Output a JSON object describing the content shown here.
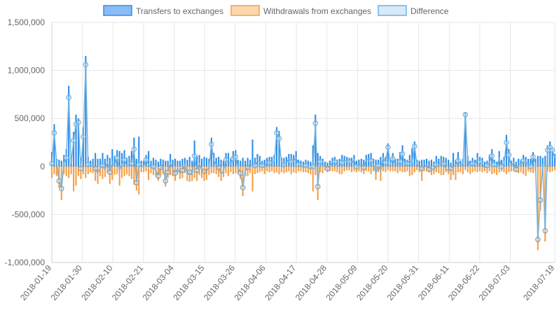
{
  "chart_data": {
    "type": "bar",
    "title": "",
    "xlabel": "",
    "ylabel": "",
    "ylim": [
      -1000000,
      1500000
    ],
    "y_ticks": [
      "1,500,000",
      "1,000,000",
      "500,000",
      "0",
      "-500,000",
      "-1,000,000"
    ],
    "y_tick_values": [
      1500000,
      1000000,
      500000,
      0,
      -500000,
      -1000000
    ],
    "x_start": "2018-01-19",
    "x_end": "2018-07-19",
    "x_ticks": [
      "2018-01-19",
      "2018-01-30",
      "2018-02-10",
      "2018-02-21",
      "2018-03-04",
      "2018-03-15",
      "2018-03-26",
      "2018-04-06",
      "2018-04-17",
      "2018-04-28",
      "2018-05-09",
      "2018-05-20",
      "2018-05-31",
      "2018-06-11",
      "2018-06-22",
      "2018-07-03",
      "2018-07-19"
    ],
    "grid": true,
    "legend_position": "top",
    "legend": [
      {
        "label": "Transfers to exchanges",
        "fill": "#8bbcf5",
        "stroke": "#2f8ee8"
      },
      {
        "label": "Withdrawals from exchanges",
        "fill": "#fcd6ad",
        "stroke": "#f4a04a"
      },
      {
        "label": "Difference",
        "fill": "#d6eaf8",
        "stroke": "#6fb2e0"
      }
    ],
    "series": [
      {
        "name": "Transfers to exchanges",
        "type": "bar",
        "color": "#2f8ee8",
        "values": [
          150000,
          440000,
          80000,
          70000,
          60000,
          120000,
          180000,
          840000,
          120000,
          360000,
          540000,
          500000,
          90000,
          410000,
          1150000,
          100000,
          60000,
          80000,
          140000,
          80000,
          80000,
          140000,
          80000,
          120000,
          90000,
          180000,
          110000,
          170000,
          160000,
          140000,
          170000,
          90000,
          110000,
          160000,
          300000,
          80000,
          310000,
          60000,
          60000,
          120000,
          160000,
          60000,
          90000,
          70000,
          50000,
          80000,
          70000,
          60000,
          60000,
          130000,
          70000,
          80000,
          60000,
          60000,
          80000,
          90000,
          70000,
          100000,
          60000,
          270000,
          110000,
          120000,
          80000,
          100000,
          90000,
          80000,
          300000,
          140000,
          90000,
          100000,
          70000,
          60000,
          140000,
          140000,
          90000,
          160000,
          170000,
          70000,
          60000,
          90000,
          60000,
          90000,
          70000,
          280000,
          90000,
          130000,
          110000,
          60000,
          70000,
          90000,
          100000,
          100000,
          120000,
          410000,
          370000,
          90000,
          90000,
          100000,
          130000,
          130000,
          120000,
          160000,
          70000,
          60000,
          50000,
          70000,
          60000,
          50000,
          220000,
          540000,
          140000,
          110000,
          80000,
          50000,
          40000,
          60000,
          90000,
          100000,
          70000,
          80000,
          120000,
          110000,
          100000,
          90000,
          90000,
          120000,
          60000,
          70000,
          80000,
          70000,
          120000,
          130000,
          140000,
          80000,
          70000,
          70000,
          100000,
          140000,
          100000,
          240000,
          80000,
          140000,
          80000,
          80000,
          150000,
          220000,
          80000,
          70000,
          120000,
          190000,
          260000,
          70000,
          60000,
          70000,
          70000,
          80000,
          60000,
          70000,
          50000,
          110000,
          80000,
          110000,
          100000,
          90000,
          70000,
          40000,
          140000,
          70000,
          150000,
          60000,
          80000,
          560000,
          110000,
          60000,
          90000,
          70000,
          140000,
          100000,
          90000,
          50000,
          60000,
          120000,
          180000,
          70000,
          50000,
          160000,
          70000,
          100000,
          330000,
          180000,
          60000,
          90000,
          50000,
          80000,
          70000,
          120000,
          100000,
          80000,
          80000,
          150000,
          80000,
          110000,
          110000,
          90000,
          110000,
          220000,
          260000,
          180000,
          130000
        ]
      },
      {
        "name": "Withdrawals from exchanges",
        "type": "bar",
        "color": "#f4a04a",
        "values": [
          -120000,
          -80000,
          -100000,
          -220000,
          -350000,
          -80000,
          -100000,
          -120000,
          -80000,
          -260000,
          -200000,
          -100000,
          -130000,
          -80000,
          -120000,
          -80000,
          -60000,
          -70000,
          -150000,
          -180000,
          -100000,
          -130000,
          -110000,
          -70000,
          -180000,
          -140000,
          -90000,
          -80000,
          -200000,
          -120000,
          -100000,
          -80000,
          -100000,
          -130000,
          -190000,
          -250000,
          -290000,
          -60000,
          -60000,
          -50000,
          -140000,
          -70000,
          -90000,
          -110000,
          -150000,
          -90000,
          -80000,
          -210000,
          -120000,
          -90000,
          -100000,
          -150000,
          -80000,
          -130000,
          -120000,
          -70000,
          -150000,
          -160000,
          -150000,
          -120000,
          -150000,
          -90000,
          -120000,
          -150000,
          -140000,
          -90000,
          -70000,
          -70000,
          -80000,
          -110000,
          -150000,
          -110000,
          -70000,
          -100000,
          -60000,
          -80000,
          -70000,
          -80000,
          -130000,
          -310000,
          -100000,
          -100000,
          -70000,
          -260000,
          -80000,
          -70000,
          -60000,
          -50000,
          -80000,
          -50000,
          -60000,
          -50000,
          -70000,
          -60000,
          -80000,
          -60000,
          -70000,
          -60000,
          -50000,
          -80000,
          -60000,
          -70000,
          -50000,
          -50000,
          -60000,
          -60000,
          -70000,
          -80000,
          -260000,
          -90000,
          -350000,
          -60000,
          -70000,
          -40000,
          -60000,
          -50000,
          -50000,
          -50000,
          -60000,
          -80000,
          -80000,
          -50000,
          -40000,
          -40000,
          -60000,
          -50000,
          -60000,
          -50000,
          -60000,
          -80000,
          -50000,
          -50000,
          -80000,
          -50000,
          -140000,
          -60000,
          -150000,
          -50000,
          -60000,
          -40000,
          -50000,
          -50000,
          -50000,
          -70000,
          -50000,
          -60000,
          -60000,
          -50000,
          -100000,
          -90000,
          -60000,
          -40000,
          -60000,
          -150000,
          -50000,
          -50000,
          -60000,
          -90000,
          -80000,
          -60000,
          -70000,
          -90000,
          -90000,
          -60000,
          -80000,
          -140000,
          -90000,
          -140000,
          -60000,
          -60000,
          -80000,
          -40000,
          -60000,
          -80000,
          -60000,
          -50000,
          -60000,
          -50000,
          -60000,
          -50000,
          -70000,
          -50000,
          -80000,
          -70000,
          -90000,
          -60000,
          -50000,
          -60000,
          -80000,
          -60000,
          -50000,
          -50000,
          -60000,
          -70000,
          -60000,
          -80000,
          -100000,
          -50000,
          -60000,
          -70000,
          -50000,
          -870000,
          -460000,
          -80000,
          -780000,
          -50000,
          -60000,
          -50000,
          -40000
        ]
      },
      {
        "name": "Difference",
        "type": "line",
        "color": "#6fb2e0",
        "values": [
          30000,
          350000,
          40000,
          -150000,
          -230000,
          30000,
          90000,
          720000,
          30000,
          270000,
          440000,
          460000,
          -20000,
          310000,
          1060000,
          20000,
          0,
          10000,
          -20000,
          -70000,
          -20000,
          10000,
          -30000,
          50000,
          -60000,
          40000,
          20000,
          90000,
          -40000,
          20000,
          70000,
          10000,
          10000,
          30000,
          180000,
          -170000,
          20000,
          0,
          0,
          70000,
          20000,
          -10000,
          0,
          -40000,
          -100000,
          -10000,
          -10000,
          -150000,
          -60000,
          40000,
          -30000,
          -70000,
          -20000,
          -70000,
          -40000,
          20000,
          -80000,
          -60000,
          -90000,
          110000,
          -40000,
          30000,
          -40000,
          -50000,
          -50000,
          -10000,
          230000,
          70000,
          10000,
          -10000,
          -80000,
          -50000,
          70000,
          40000,
          30000,
          80000,
          100000,
          -10000,
          -70000,
          -220000,
          -40000,
          -10000,
          0,
          20000,
          10000,
          60000,
          50000,
          10000,
          -10000,
          40000,
          40000,
          50000,
          50000,
          350000,
          290000,
          30000,
          20000,
          40000,
          80000,
          50000,
          60000,
          90000,
          20000,
          10000,
          -10000,
          10000,
          -10000,
          -30000,
          0,
          450000,
          -210000,
          50000,
          10000,
          10000,
          -20000,
          10000,
          40000,
          50000,
          10000,
          0,
          40000,
          60000,
          60000,
          50000,
          30000,
          70000,
          0,
          20000,
          20000,
          -10000,
          70000,
          80000,
          60000,
          30000,
          -70000,
          10000,
          -50000,
          90000,
          40000,
          200000,
          30000,
          80000,
          20000,
          30000,
          50000,
          130000,
          20000,
          30000,
          60000,
          40000,
          210000,
          20000,
          0,
          -20000,
          -10000,
          20000,
          -30000,
          -20000,
          -40000,
          20000,
          20000,
          40000,
          30000,
          -30000,
          -40000,
          -20000,
          0,
          10000,
          60000,
          20000,
          20000,
          540000,
          70000,
          0,
          30000,
          20000,
          80000,
          50000,
          30000,
          -20000,
          10000,
          40000,
          110000,
          20000,
          -10000,
          80000,
          0,
          30000,
          250000,
          120000,
          10000,
          40000,
          -30000,
          20000,
          20000,
          60000,
          40000,
          20000,
          0,
          100000,
          30000,
          -760000,
          -350000,
          10000,
          -670000,
          170000,
          200000,
          170000,
          90000
        ]
      }
    ]
  }
}
